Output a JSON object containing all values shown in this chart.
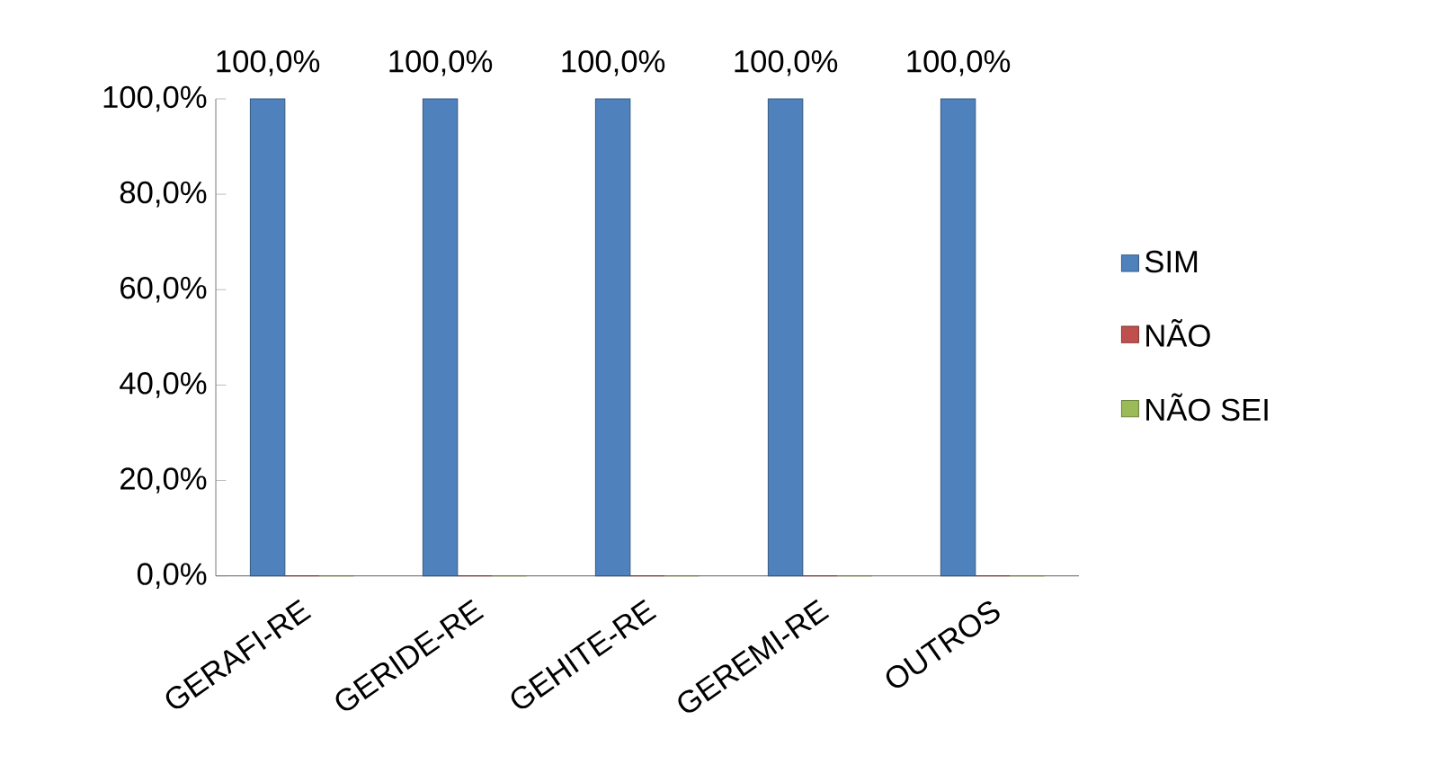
{
  "chart_data": {
    "type": "bar",
    "categories": [
      "GERAFI-RE",
      "GERIDE-RE",
      "GEHITE-RE",
      "GEREMI-RE",
      "OUTROS"
    ],
    "series": [
      {
        "name": "SIM",
        "color": "#4f81bd",
        "values": [
          100,
          100,
          100,
          100,
          100
        ],
        "value_labels": [
          "100,0%",
          "100,0%",
          "100,0%",
          "100,0%",
          "100,0%"
        ]
      },
      {
        "name": "NÃO",
        "color": "#c0504d",
        "values": [
          0,
          0,
          0,
          0,
          0
        ]
      },
      {
        "name": "NÃO SEI",
        "color": "#9bbb59",
        "values": [
          0,
          0,
          0,
          0,
          0
        ]
      }
    ],
    "ylim": [
      0,
      100
    ],
    "yticks": [
      {
        "value": 0,
        "label": "0,0%"
      },
      {
        "value": 20,
        "label": "20,0%"
      },
      {
        "value": 40,
        "label": "40,0%"
      },
      {
        "value": 60,
        "label": "60,0%"
      },
      {
        "value": 80,
        "label": "80,0%"
      },
      {
        "value": 100,
        "label": "100,0%"
      }
    ],
    "grid": false,
    "legend": "right"
  }
}
